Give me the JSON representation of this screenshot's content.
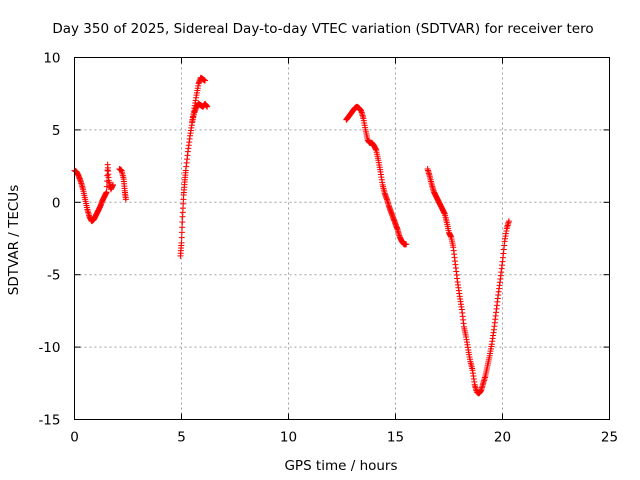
{
  "chart_data": {
    "type": "scatter",
    "title": "Day 350 of 2025, Sidereal Day-to-day VTEC variation (SDTVAR) for receiver tero",
    "xlabel": "GPS time / hours",
    "ylabel": "SDTVAR / TECUs",
    "xlim": [
      0,
      25
    ],
    "ylim": [
      -15,
      10
    ],
    "x_ticks": [
      "0",
      "5",
      "10",
      "15",
      "20",
      "25"
    ],
    "y_ticks": [
      "10",
      "5",
      "0",
      "-5",
      "-10",
      "-15"
    ],
    "grid": true,
    "marker": "plus",
    "color": "#ff0000",
    "segments": [
      [
        [
          0.0,
          2.2
        ],
        [
          0.1,
          2.1
        ],
        [
          0.2,
          1.8
        ],
        [
          0.3,
          1.4
        ],
        [
          0.4,
          0.9
        ],
        [
          0.5,
          0.2
        ],
        [
          0.6,
          -0.5
        ],
        [
          0.7,
          -1.0
        ],
        [
          0.8,
          -1.3
        ],
        [
          0.9,
          -1.2
        ],
        [
          1.0,
          -0.9
        ],
        [
          1.1,
          -0.6
        ],
        [
          1.2,
          -0.3
        ],
        [
          1.3,
          0.1
        ],
        [
          1.4,
          0.4
        ],
        [
          1.5,
          0.7
        ],
        [
          1.55,
          2.6
        ],
        [
          1.6,
          1.5
        ],
        [
          1.7,
          0.9
        ],
        [
          1.8,
          1.2
        ]
      ],
      [
        [
          2.1,
          2.3
        ],
        [
          2.2,
          2.2
        ],
        [
          2.3,
          1.6
        ],
        [
          2.35,
          0.8
        ],
        [
          2.4,
          0.2
        ]
      ],
      [
        [
          4.95,
          -3.7
        ],
        [
          5.0,
          -2.8
        ],
        [
          5.05,
          -1.0
        ],
        [
          5.1,
          0.5
        ],
        [
          5.15,
          1.4
        ],
        [
          5.2,
          2.2
        ],
        [
          5.3,
          3.5
        ],
        [
          5.4,
          4.6
        ],
        [
          5.5,
          5.5
        ],
        [
          5.6,
          6.5
        ],
        [
          5.7,
          7.4
        ],
        [
          5.8,
          8.2
        ],
        [
          5.9,
          8.6
        ],
        [
          6.0,
          8.5
        ],
        [
          6.1,
          8.4
        ]
      ],
      [
        [
          5.5,
          5.6
        ],
        [
          5.6,
          6.2
        ],
        [
          5.7,
          6.6
        ],
        [
          5.8,
          6.8
        ],
        [
          5.9,
          6.7
        ],
        [
          6.0,
          6.6
        ],
        [
          6.1,
          6.8
        ],
        [
          6.2,
          6.6
        ]
      ],
      [
        [
          12.7,
          5.7
        ],
        [
          12.8,
          5.9
        ],
        [
          12.9,
          6.1
        ],
        [
          13.0,
          6.3
        ],
        [
          13.1,
          6.5
        ],
        [
          13.2,
          6.6
        ],
        [
          13.3,
          6.5
        ],
        [
          13.4,
          6.3
        ],
        [
          13.5,
          5.8
        ],
        [
          13.6,
          5.0
        ],
        [
          13.7,
          4.3
        ],
        [
          13.8,
          4.1
        ],
        [
          13.9,
          4.1
        ],
        [
          14.0,
          3.9
        ],
        [
          14.1,
          3.6
        ],
        [
          14.2,
          2.9
        ],
        [
          14.3,
          2.1
        ],
        [
          14.4,
          1.2
        ],
        [
          14.5,
          0.6
        ],
        [
          14.6,
          0.2
        ],
        [
          14.7,
          -0.3
        ],
        [
          14.8,
          -0.7
        ],
        [
          14.9,
          -1.1
        ],
        [
          15.0,
          -1.5
        ],
        [
          15.1,
          -1.9
        ],
        [
          15.2,
          -2.4
        ],
        [
          15.3,
          -2.7
        ],
        [
          15.4,
          -2.9
        ],
        [
          15.5,
          -2.9
        ]
      ],
      [
        [
          16.5,
          2.3
        ],
        [
          16.6,
          1.8
        ],
        [
          16.7,
          1.2
        ],
        [
          16.8,
          0.7
        ],
        [
          16.9,
          0.4
        ],
        [
          17.0,
          0.1
        ],
        [
          17.1,
          -0.2
        ],
        [
          17.2,
          -0.5
        ],
        [
          17.3,
          -0.8
        ],
        [
          17.4,
          -1.4
        ],
        [
          17.5,
          -2.1
        ],
        [
          17.6,
          -2.4
        ],
        [
          17.7,
          -3.1
        ],
        [
          17.8,
          -4.3
        ],
        [
          17.9,
          -5.5
        ],
        [
          18.0,
          -6.5
        ],
        [
          18.1,
          -7.4
        ],
        [
          18.2,
          -8.6
        ],
        [
          18.3,
          -9.3
        ],
        [
          18.4,
          -10.2
        ],
        [
          18.5,
          -11.0
        ],
        [
          18.6,
          -11.6
        ],
        [
          18.7,
          -12.6
        ],
        [
          18.8,
          -13.1
        ],
        [
          18.9,
          -13.2
        ],
        [
          19.0,
          -13.0
        ],
        [
          19.1,
          -12.5
        ],
        [
          19.2,
          -12.0
        ],
        [
          19.3,
          -11.3
        ],
        [
          19.4,
          -10.6
        ],
        [
          19.5,
          -9.8
        ],
        [
          19.6,
          -8.8
        ],
        [
          19.7,
          -7.6
        ],
        [
          19.8,
          -6.4
        ],
        [
          19.9,
          -5.3
        ],
        [
          20.0,
          -4.1
        ],
        [
          20.1,
          -2.7
        ],
        [
          20.2,
          -1.8
        ],
        [
          20.3,
          -1.3
        ]
      ]
    ]
  }
}
